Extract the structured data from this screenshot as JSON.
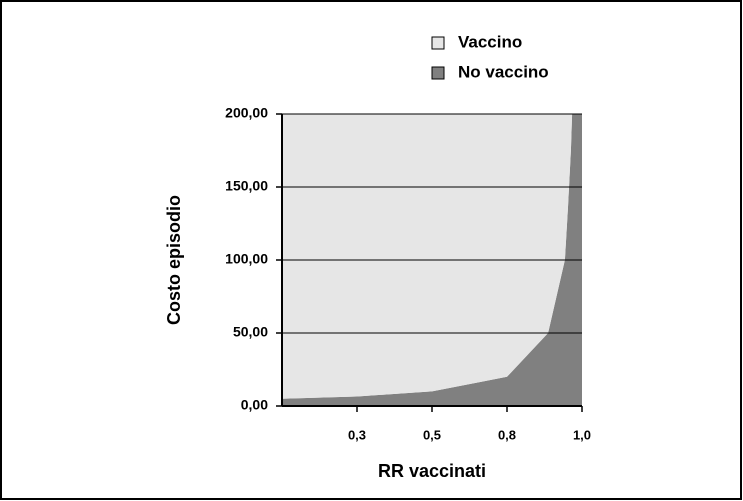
{
  "chart_data": {
    "type": "area",
    "stacked": true,
    "x": [
      0,
      0.25,
      0.5,
      0.75,
      0.887,
      0.943,
      0.953,
      0.963,
      0.967,
      1.0
    ],
    "series": [
      {
        "name": "No vaccino",
        "color": "#808080",
        "values": [
          5,
          6.5,
          10,
          20,
          50,
          100,
          135,
          175,
          200,
          200
        ]
      },
      {
        "name": "Vaccino",
        "color": "#e6e6e6",
        "values": [
          195,
          193.5,
          190,
          180,
          150,
          100,
          65,
          25,
          0,
          0
        ]
      }
    ],
    "xlabel": "RR vaccinati",
    "ylabel": "Costo episodio",
    "xlim": [
      0,
      1
    ],
    "ylim": [
      0,
      200
    ],
    "xticks": [
      {
        "value": 0.25,
        "label": "0,3"
      },
      {
        "value": 0.5,
        "label": "0,5"
      },
      {
        "value": 0.75,
        "label": "0,8"
      },
      {
        "value": 1.0,
        "label": "1,0"
      }
    ],
    "yticks": [
      {
        "value": 0,
        "label": "0,00"
      },
      {
        "value": 50,
        "label": "50,00"
      },
      {
        "value": 100,
        "label": "100,00"
      },
      {
        "value": 150,
        "label": "150,00"
      },
      {
        "value": 200,
        "label": "200,00"
      }
    ],
    "grid": true,
    "legend": "top-right"
  }
}
